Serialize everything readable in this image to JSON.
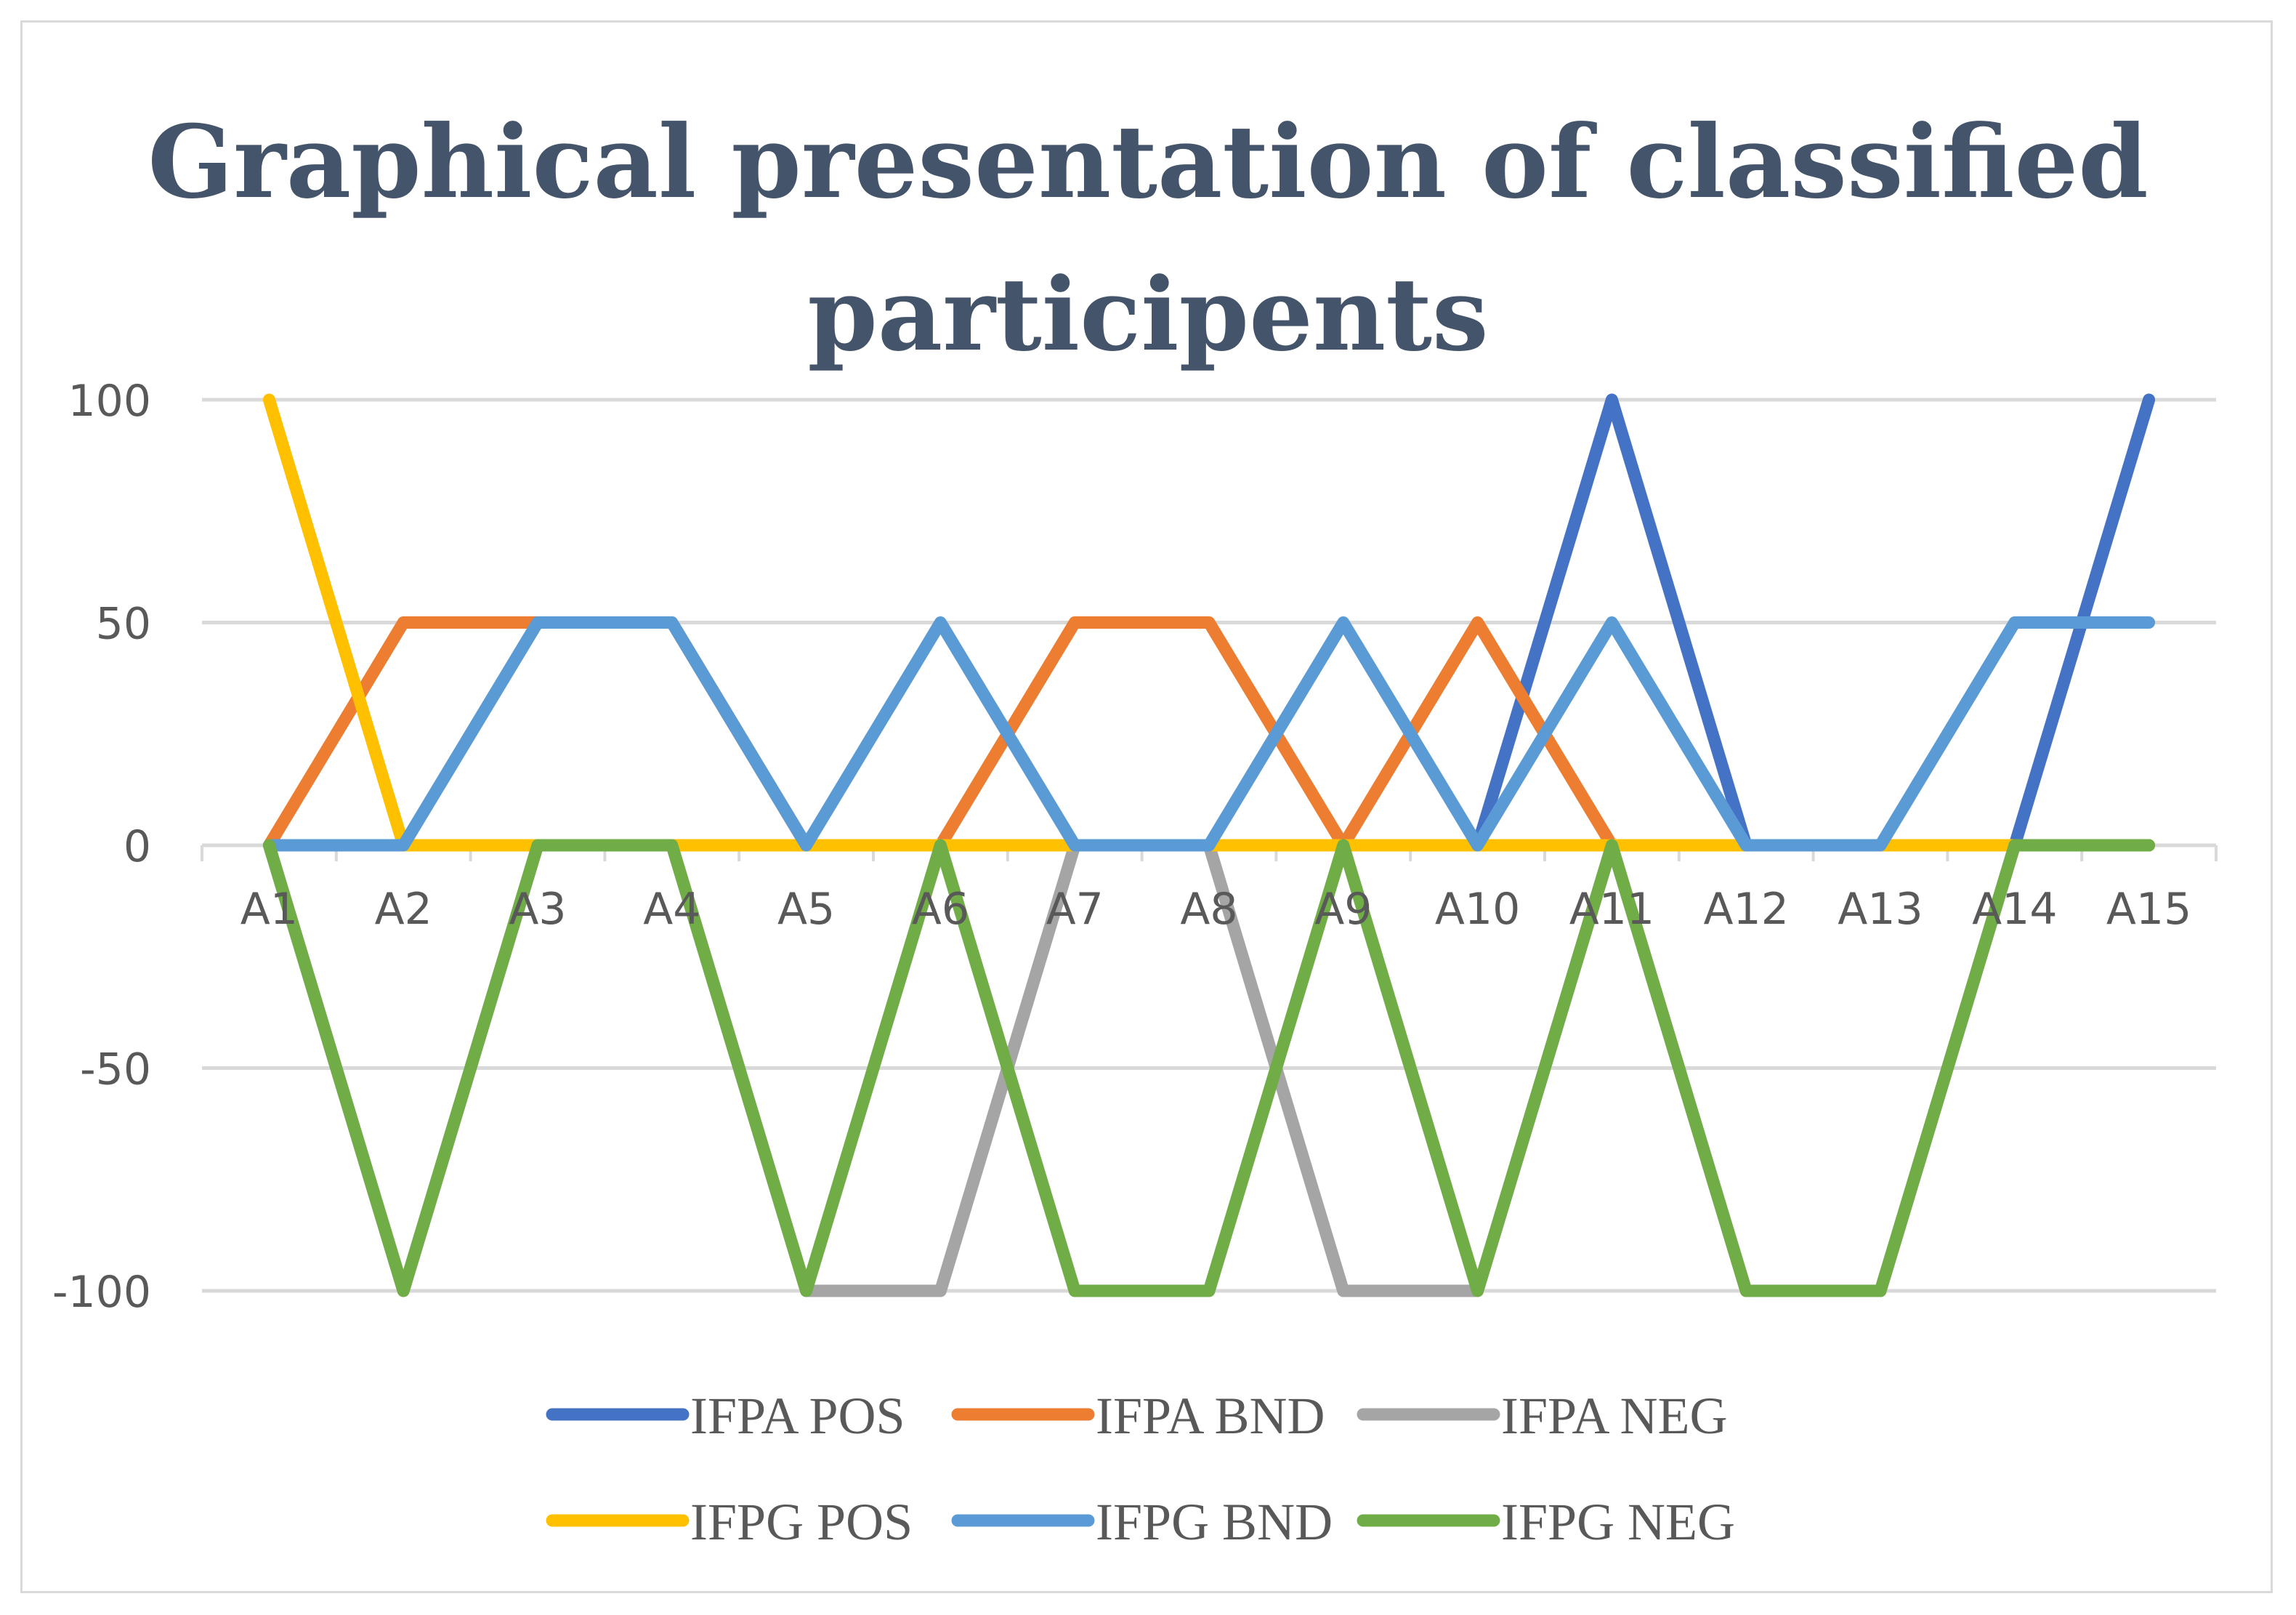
{
  "chart_data": {
    "type": "line",
    "title": "Graphical presentation of classified participents",
    "xlabel": "",
    "ylabel": "",
    "categories": [
      "A1",
      "A2",
      "A3",
      "A4",
      "A5",
      "A6",
      "A7",
      "A8",
      "A9",
      "A10",
      "A11",
      "A12",
      "A13",
      "A14",
      "A15"
    ],
    "ylim": [
      -100,
      100
    ],
    "yticks": [
      100,
      50,
      0,
      -50,
      -100
    ],
    "grid": true,
    "legend_position": "bottom",
    "series": [
      {
        "name": "IFPA POS",
        "color": "#4472c4",
        "values": [
          0,
          0,
          0,
          0,
          0,
          0,
          0,
          0,
          0,
          0,
          100,
          0,
          0,
          0,
          100
        ]
      },
      {
        "name": "IFPA BND",
        "color": "#ed7d31",
        "values": [
          0,
          50,
          50,
          50,
          0,
          0,
          50,
          50,
          0,
          50,
          0,
          0,
          0,
          0,
          0
        ]
      },
      {
        "name": "IFPA NEG",
        "color": "#a5a5a5",
        "values": [
          0,
          -100,
          0,
          0,
          -100,
          -100,
          0,
          0,
          -100,
          -100,
          0,
          -100,
          -100,
          0,
          0
        ]
      },
      {
        "name": "IFPG POS",
        "color": "#ffc000",
        "values": [
          100,
          0,
          0,
          0,
          0,
          0,
          0,
          0,
          0,
          0,
          0,
          0,
          0,
          0,
          0
        ]
      },
      {
        "name": "IFPG BND",
        "color": "#5b9bd5",
        "values": [
          0,
          0,
          50,
          50,
          0,
          50,
          0,
          0,
          50,
          0,
          50,
          0,
          0,
          50,
          50
        ]
      },
      {
        "name": "IFPG NEG",
        "color": "#70ad47",
        "values": [
          0,
          -100,
          0,
          0,
          -100,
          0,
          -100,
          -100,
          0,
          -100,
          0,
          -100,
          -100,
          0,
          0
        ]
      }
    ]
  }
}
